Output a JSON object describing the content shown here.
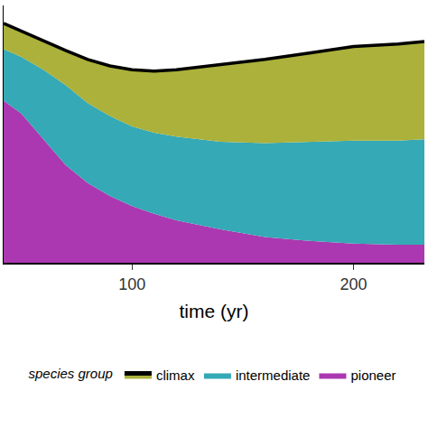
{
  "chart_data": {
    "type": "area",
    "stacked": true,
    "x_label": "time (yr)",
    "legend_title": "species group",
    "legend": "bottom",
    "tick_labels": "x",
    "grid": false,
    "x": [
      42,
      50,
      60,
      70,
      80,
      90,
      100,
      110,
      120,
      140,
      160,
      180,
      200,
      220,
      232
    ],
    "xlim": [
      42,
      232
    ],
    "xticks": [
      100,
      200
    ],
    "ylim": [
      0,
      100
    ],
    "series": [
      {
        "name": "pioneer",
        "color": "#ab38b0",
        "values": [
          63,
          58,
          48,
          38,
          31,
          26,
          22,
          19,
          16.5,
          13,
          10,
          8.5,
          7.5,
          7,
          7
        ]
      },
      {
        "name": "intermediate",
        "color": "#35a9b5",
        "values": [
          20,
          22,
          27,
          31,
          31,
          31,
          31,
          31.5,
          32.5,
          34,
          36.5,
          38.5,
          40,
          40.5,
          41
        ]
      },
      {
        "name": "climax",
        "color": "#abb13a",
        "values": [
          10,
          10,
          11,
          13.5,
          17,
          19.5,
          22,
          24,
          26,
          30,
          32.5,
          34.5,
          36.5,
          37.5,
          38
        ]
      }
    ]
  }
}
